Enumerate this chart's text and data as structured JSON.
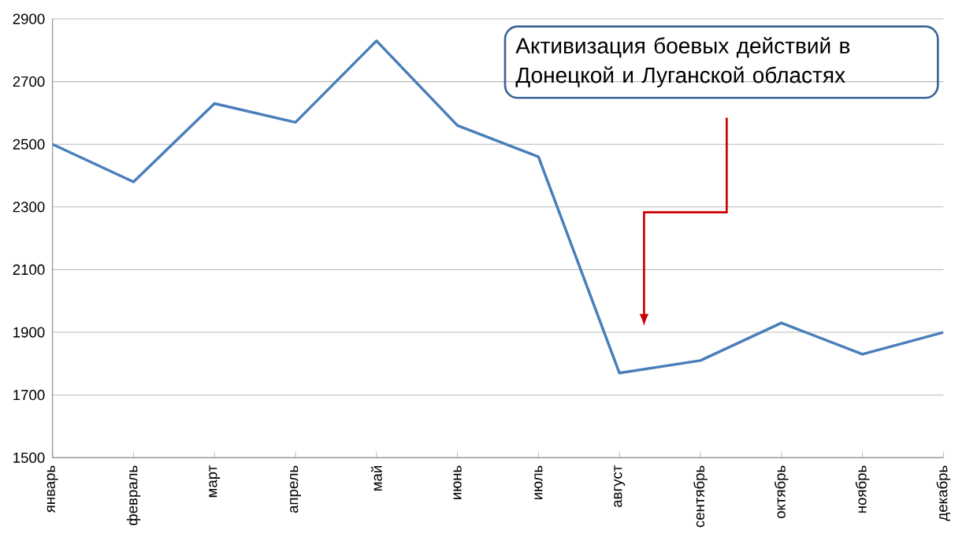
{
  "chart_data": {
    "type": "line",
    "categories": [
      "январь",
      "февраль",
      "март",
      "апрель",
      "май",
      "июнь",
      "июль",
      "август",
      "сентябрь",
      "октябрь",
      "ноябрь",
      "декабрь"
    ],
    "values": [
      2500,
      2380,
      2630,
      2570,
      2830,
      2560,
      2460,
      1770,
      1810,
      1930,
      1830,
      1900
    ],
    "color": "#4a7ebb",
    "ylim": [
      1500,
      2900
    ],
    "yticks": [
      1500,
      1700,
      1900,
      2100,
      2300,
      2500,
      2700,
      2900
    ],
    "grid": "y",
    "marker": "none",
    "line_style": "solid",
    "annotations": [
      "Активизация боевых действий в Донецкой и Луганской областях"
    ]
  }
}
